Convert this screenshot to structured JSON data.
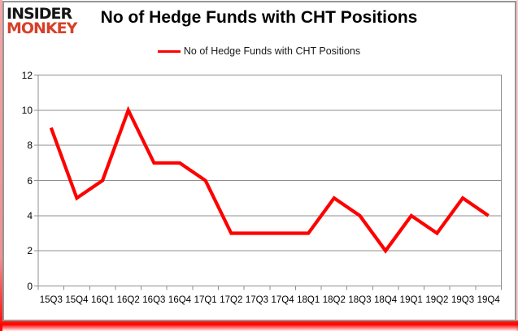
{
  "logo": {
    "line1": "INSIDER",
    "line2": "MONKEY",
    "primary_color": "#151515",
    "secondary_color": "#d6402a"
  },
  "title": "No of Hedge Funds with CHT Positions",
  "legend": {
    "label": "No of Hedge Funds with CHT Positions",
    "line_color": "#fe0000"
  },
  "chart_data": {
    "type": "line",
    "categories": [
      "15Q3",
      "15Q4",
      "16Q1",
      "16Q2",
      "16Q3",
      "16Q4",
      "17Q1",
      "17Q2",
      "17Q3",
      "17Q4",
      "18Q1",
      "18Q2",
      "18Q3",
      "18Q4",
      "19Q1",
      "19Q2",
      "19Q3",
      "19Q4"
    ],
    "series": [
      {
        "name": "No of Hedge Funds with CHT Positions",
        "values": [
          9,
          5,
          6,
          10,
          7,
          7,
          6,
          3,
          3,
          3,
          3,
          5,
          4,
          2,
          4,
          3,
          5,
          4
        ],
        "color": "#fe0000"
      }
    ],
    "title": "No of Hedge Funds with CHT Positions",
    "xlabel": "",
    "ylabel": "",
    "ylim": [
      0,
      12
    ],
    "yticks": [
      0,
      2,
      4,
      6,
      8,
      10,
      12
    ],
    "grid": true,
    "gridline_color": "#8f8f8f",
    "legend_position": "top"
  },
  "frame": {
    "border_color": "#969696",
    "accent_color": "#fe0000"
  }
}
